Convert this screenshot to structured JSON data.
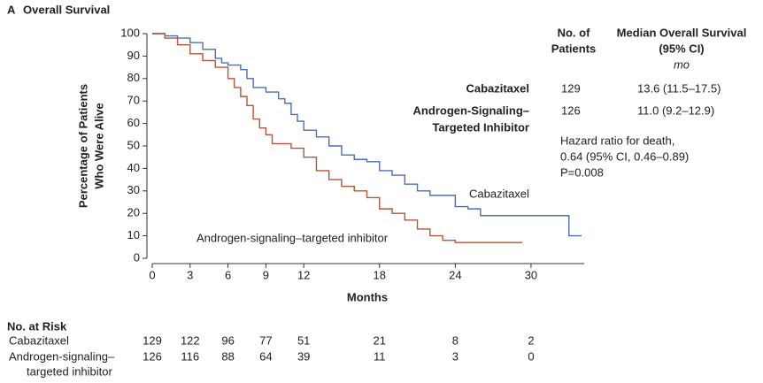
{
  "chart_data": {
    "type": "step",
    "panel_label": "A",
    "title": "Overall Survival",
    "xlabel": "Months",
    "ylabel": [
      "Percentage of Patients",
      "Who Were Alive"
    ],
    "xlim": [
      0,
      34
    ],
    "ylim": [
      0,
      100
    ],
    "xticks": [
      0,
      3,
      6,
      9,
      12,
      18,
      24,
      30
    ],
    "yticks": [
      0,
      10,
      20,
      30,
      40,
      50,
      60,
      70,
      80,
      90,
      100
    ],
    "series": [
      {
        "name": "Cabazitaxel",
        "color": "#4a6fb5",
        "x": [
          0,
          1,
          2,
          3,
          4,
          5,
          5.5,
          6,
          7,
          7.5,
          8,
          9,
          10,
          10.5,
          11,
          11.5,
          12,
          13,
          14,
          15,
          16,
          17,
          18,
          19,
          20,
          21,
          22,
          24,
          25,
          26,
          29,
          31,
          33,
          34
        ],
        "values": [
          100,
          99,
          98,
          96,
          93,
          89,
          87,
          86,
          84,
          80,
          76,
          74,
          71,
          69,
          64,
          61,
          57,
          54,
          50,
          46,
          44,
          43,
          39,
          37,
          33,
          30,
          28,
          23,
          22,
          19,
          19,
          19,
          10,
          10
        ]
      },
      {
        "name": "Androgen-signaling–targeted inhibitor",
        "color": "#b5553a",
        "x": [
          0,
          1,
          2,
          3,
          4,
          5,
          6,
          6.5,
          7,
          7.5,
          8,
          8.5,
          9,
          9.5,
          11,
          12,
          13,
          14,
          15,
          16,
          17,
          18,
          19,
          20,
          21,
          22,
          23,
          24,
          26,
          29.3
        ],
        "values": [
          100,
          98,
          95,
          91,
          88,
          85,
          80,
          76,
          72,
          68,
          62,
          58,
          55,
          51,
          49,
          45,
          39,
          35,
          32,
          30,
          27,
          22,
          20,
          17,
          13,
          10,
          8,
          7,
          7,
          7
        ]
      }
    ],
    "summary_table": {
      "headers": [
        [
          "No. of",
          "Patients"
        ],
        [
          "Median Overall Survival",
          "(95% CI)"
        ]
      ],
      "unit": "mo",
      "rows": [
        {
          "label": [
            "Cabazitaxel"
          ],
          "patients": 129,
          "median": "13.6 (11.5–17.5)"
        },
        {
          "label": [
            "Androgen-Signaling–",
            "Targeted Inhibitor"
          ],
          "patients": 126,
          "median": "11.0 (9.2–12.9)"
        }
      ]
    },
    "hazard_note": [
      "Hazard ratio for death,",
      "0.64 (95% CI, 0.46–0.89)",
      "P=0.008"
    ],
    "risk_table": {
      "title": "No. at Risk",
      "rows": [
        {
          "label": [
            "Cabazitaxel"
          ],
          "counts": [
            129,
            122,
            96,
            77,
            51,
            21,
            8,
            2
          ]
        },
        {
          "label": [
            "Androgen-signaling–",
            "targeted inhibitor"
          ],
          "counts": [
            126,
            116,
            88,
            64,
            39,
            11,
            3,
            0
          ]
        }
      ]
    }
  }
}
